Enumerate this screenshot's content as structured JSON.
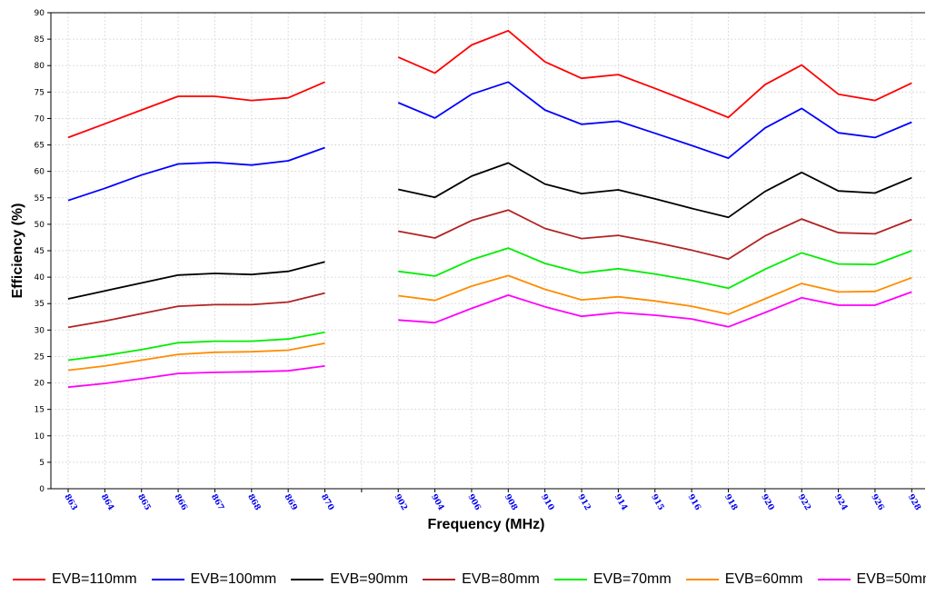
{
  "chart_data": {
    "type": "line",
    "xlabel": "Frequency (MHz)",
    "ylabel": "Efficiency (%)",
    "ylim": [
      0,
      90
    ],
    "ytick_step": 5,
    "grid": true,
    "legend_position": "bottom",
    "categories": [
      "863",
      "864",
      "865",
      "866",
      "867",
      "868",
      "869",
      "870",
      "",
      "902",
      "904",
      "906",
      "908",
      "910",
      "912",
      "914",
      "915",
      "916",
      "918",
      "920",
      "922",
      "924",
      "926",
      "928"
    ],
    "series": [
      {
        "name": "EVB=110mm",
        "color": "#ff0000",
        "values": [
          66.4,
          69.0,
          71.6,
          74.2,
          74.2,
          73.4,
          73.9,
          76.9,
          null,
          81.6,
          78.6,
          83.9,
          86.6,
          80.7,
          77.6,
          78.3,
          75.7,
          73.0,
          70.2,
          76.4,
          80.1,
          74.6,
          73.4,
          76.7
        ]
      },
      {
        "name": "EVB=100mm",
        "color": "#0000ff",
        "values": [
          54.5,
          56.8,
          59.3,
          61.4,
          61.7,
          61.2,
          62.0,
          64.5,
          null,
          73.0,
          70.1,
          74.6,
          76.9,
          71.6,
          68.9,
          69.5,
          67.2,
          64.9,
          62.5,
          68.2,
          71.9,
          67.3,
          66.4,
          69.3
        ]
      },
      {
        "name": "EVB=90mm",
        "color": "#000000",
        "values": [
          35.9,
          37.4,
          38.9,
          40.4,
          40.7,
          40.5,
          41.1,
          42.9,
          null,
          56.6,
          55.1,
          59.1,
          61.6,
          57.6,
          55.8,
          56.5,
          54.8,
          53.0,
          51.3,
          56.2,
          59.8,
          56.3,
          55.9,
          58.8
        ]
      },
      {
        "name": "EVB=80mm",
        "color": "#b22222",
        "values": [
          30.5,
          31.7,
          33.1,
          34.5,
          34.8,
          34.8,
          35.3,
          37.0,
          null,
          48.7,
          47.4,
          50.7,
          52.7,
          49.2,
          47.3,
          47.9,
          46.6,
          45.1,
          43.4,
          47.8,
          51.0,
          48.4,
          48.2,
          50.9
        ]
      },
      {
        "name": "EVB=70mm",
        "color": "#00ee00",
        "values": [
          24.3,
          25.2,
          26.3,
          27.6,
          27.9,
          27.9,
          28.3,
          29.6,
          null,
          41.1,
          40.2,
          43.3,
          45.5,
          42.6,
          40.8,
          41.6,
          40.6,
          39.4,
          37.9,
          41.5,
          44.6,
          42.5,
          42.4,
          45.0
        ]
      },
      {
        "name": "EVB=60mm",
        "color": "#ff8c00",
        "values": [
          22.4,
          23.2,
          24.3,
          25.4,
          25.8,
          25.9,
          26.2,
          27.5,
          null,
          36.5,
          35.6,
          38.3,
          40.3,
          37.7,
          35.7,
          36.3,
          35.5,
          34.5,
          33.0,
          35.9,
          38.8,
          37.2,
          37.3,
          39.9
        ]
      },
      {
        "name": "EVB=50mm",
        "color": "#ff00ff",
        "values": [
          19.2,
          19.9,
          20.8,
          21.8,
          22.0,
          22.1,
          22.3,
          23.2,
          null,
          31.9,
          31.4,
          34.1,
          36.6,
          34.4,
          32.6,
          33.3,
          32.8,
          32.1,
          30.6,
          33.3,
          36.1,
          34.7,
          34.7,
          37.2
        ]
      }
    ]
  }
}
